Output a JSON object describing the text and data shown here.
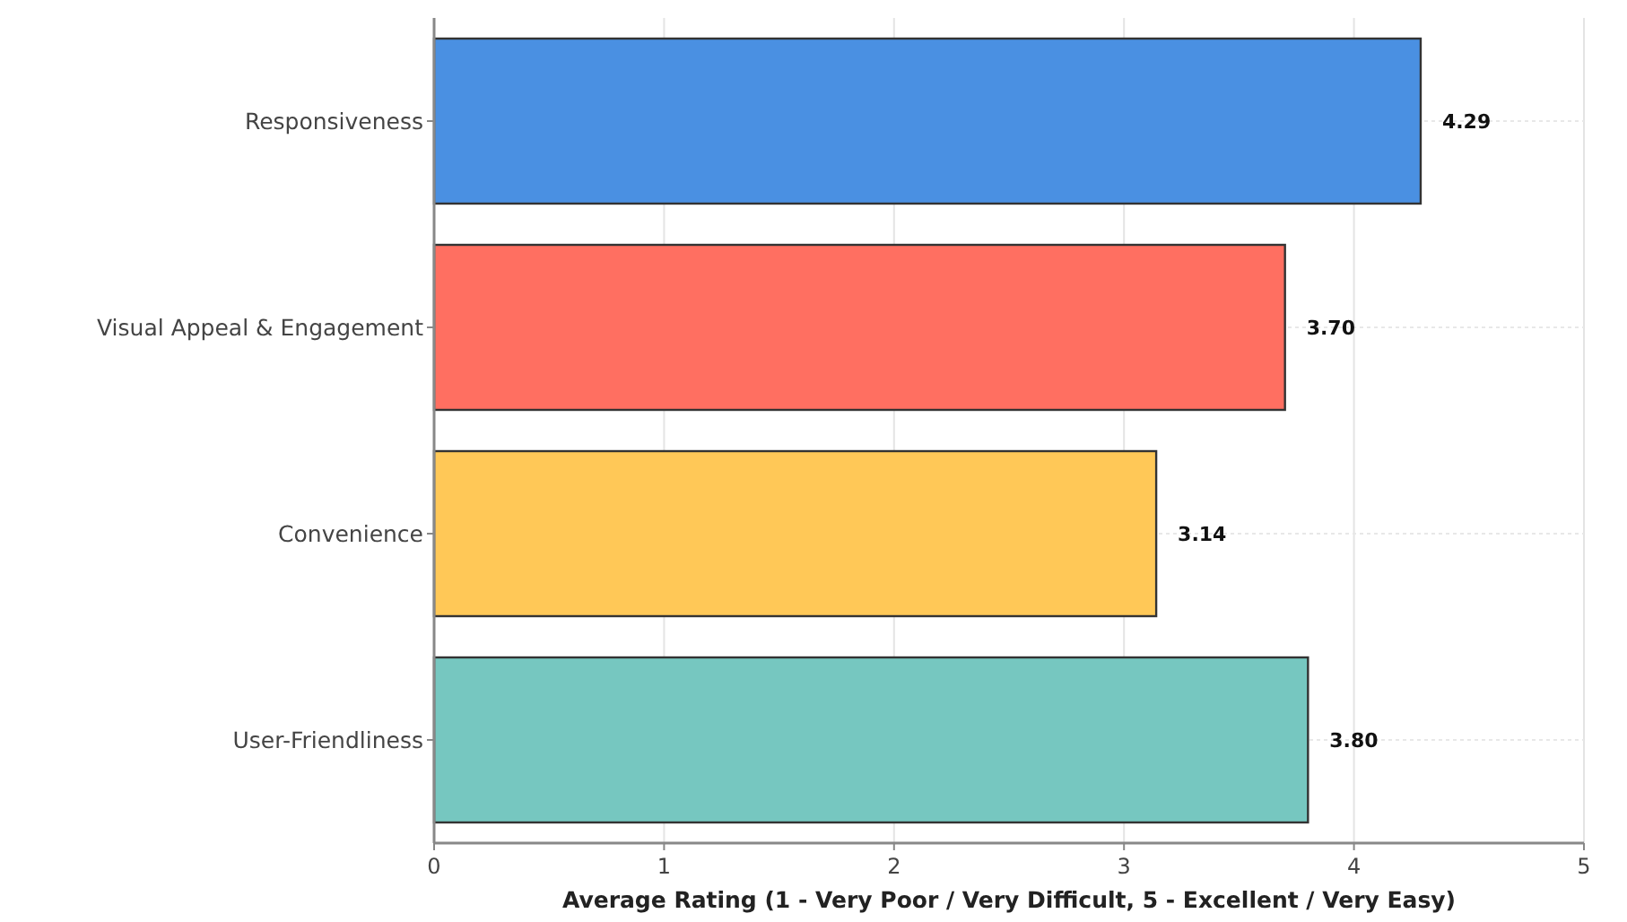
{
  "chart_data": {
    "type": "bar",
    "orientation": "horizontal",
    "xlabel": "Average Rating (1 - Very Poor / Very Difficult, 5 - Excellent / Very Easy)",
    "categories": [
      "Responsiveness",
      "Visual Appeal & Engagement",
      "Convenience",
      "User-Friendliness"
    ],
    "values": [
      4.29,
      3.7,
      3.14,
      3.8
    ],
    "colors": [
      "#4a90e2",
      "#ff6f61",
      "#ffc857",
      "#76c7c0"
    ],
    "value_labels": [
      "4.29",
      "3.70",
      "3.14",
      "3.80"
    ],
    "xlim": [
      0,
      5
    ],
    "xticks": [
      0,
      1,
      2,
      3,
      4,
      5
    ],
    "grid": true
  }
}
